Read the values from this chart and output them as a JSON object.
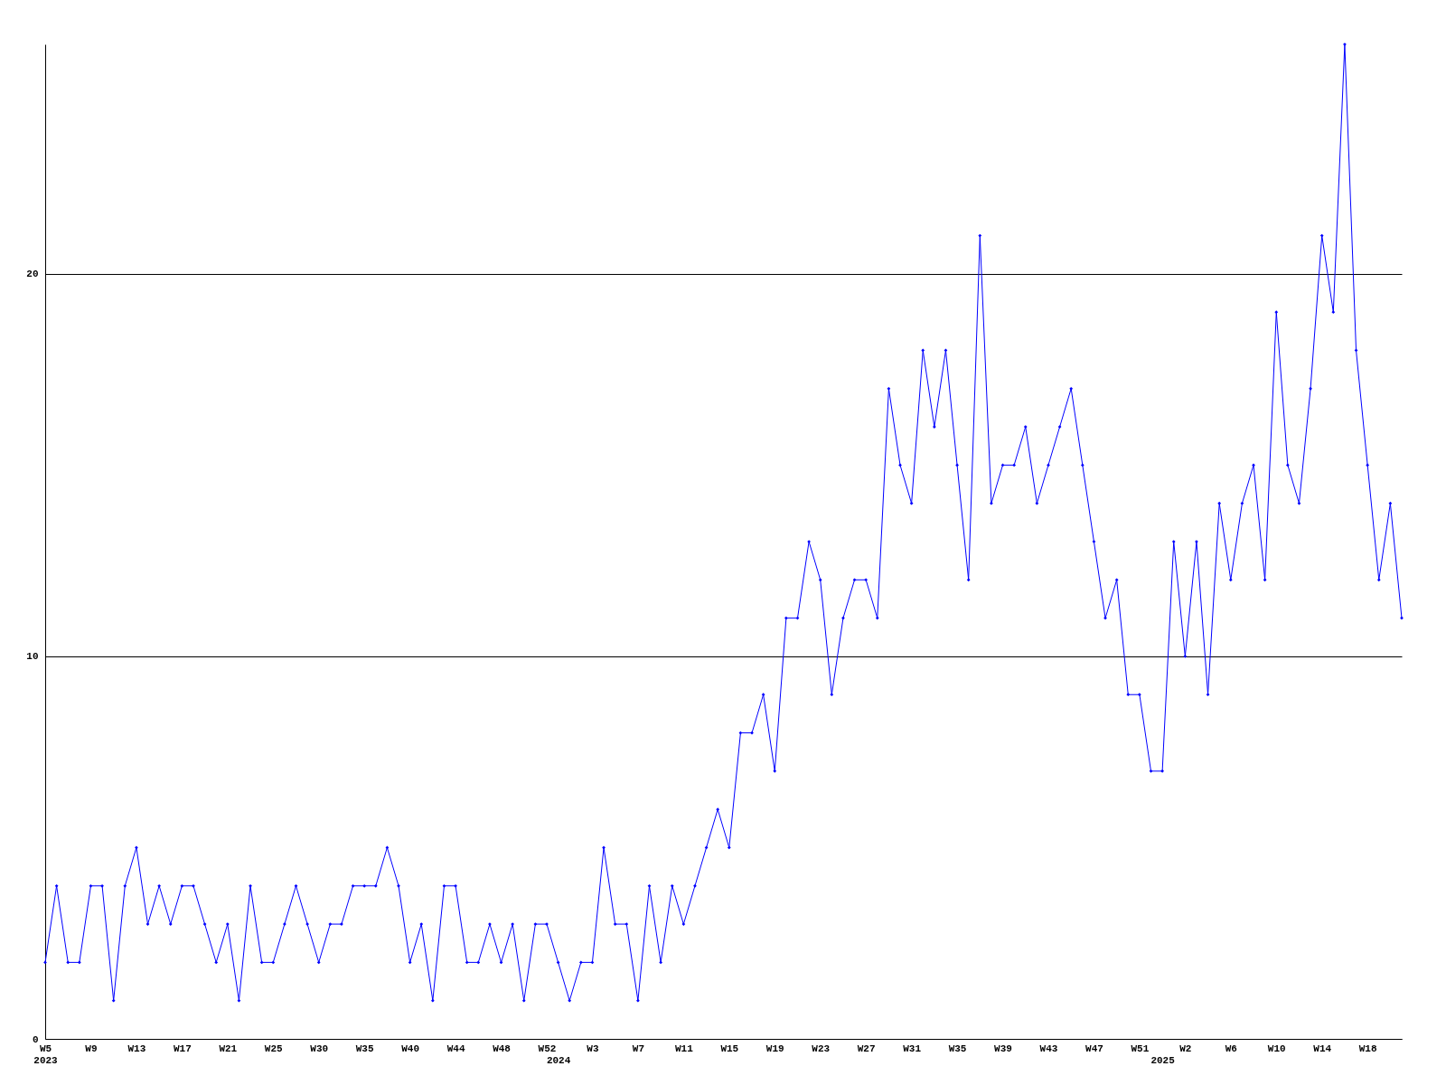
{
  "chart_data": {
    "type": "line",
    "color": "#0000ff",
    "marker": "diamond",
    "grid": "y",
    "ylim": [
      0,
      26
    ],
    "yticks": [
      0,
      10,
      20
    ],
    "categories": [
      "W5\n2023",
      null,
      null,
      null,
      "W9",
      null,
      null,
      null,
      "W13",
      null,
      null,
      null,
      "W17",
      null,
      null,
      null,
      "W21",
      null,
      null,
      null,
      "W25",
      null,
      null,
      null,
      "W30",
      null,
      null,
      null,
      "W35",
      null,
      null,
      null,
      "W40",
      null,
      null,
      null,
      "W44",
      null,
      null,
      null,
      "W48",
      null,
      null,
      null,
      "W52",
      "\n2024",
      null,
      null,
      "W3",
      null,
      null,
      null,
      "W7",
      null,
      null,
      null,
      "W11",
      null,
      null,
      null,
      "W15",
      null,
      null,
      null,
      "W19",
      null,
      null,
      null,
      "W23",
      null,
      null,
      null,
      "W27",
      null,
      null,
      null,
      "W31",
      null,
      null,
      null,
      "W35",
      null,
      null,
      null,
      "W39",
      null,
      null,
      null,
      "W43",
      null,
      null,
      null,
      "W47",
      null,
      null,
      null,
      "W51",
      null,
      "\n2025",
      null,
      "W2",
      null,
      null,
      null,
      "W6",
      null,
      null,
      null,
      "W10",
      null,
      null,
      null,
      "W14",
      null,
      null,
      null,
      "W18",
      null,
      null,
      null
    ],
    "values": [
      2,
      4,
      2,
      2,
      4,
      4,
      1,
      4,
      5,
      3,
      4,
      3,
      4,
      4,
      3,
      2,
      3,
      1,
      4,
      2,
      2,
      3,
      4,
      3,
      2,
      3,
      3,
      4,
      4,
      4,
      5,
      4,
      2,
      3,
      1,
      4,
      4,
      2,
      2,
      3,
      2,
      3,
      1,
      3,
      3,
      2,
      1,
      2,
      2,
      5,
      3,
      3,
      1,
      4,
      2,
      4,
      3,
      4,
      5,
      6,
      5,
      8,
      8,
      9,
      7,
      11,
      11,
      13,
      12,
      9,
      11,
      12,
      12,
      11,
      17,
      15,
      14,
      18,
      16,
      18,
      15,
      12,
      21,
      14,
      15,
      15,
      16,
      14,
      15,
      16,
      17,
      15,
      13,
      11,
      12,
      9,
      9,
      7,
      7,
      13,
      10,
      13,
      9,
      14,
      12,
      14,
      15,
      12,
      19,
      15,
      14,
      17,
      21,
      19,
      26,
      18,
      15,
      12,
      14,
      11
    ]
  }
}
